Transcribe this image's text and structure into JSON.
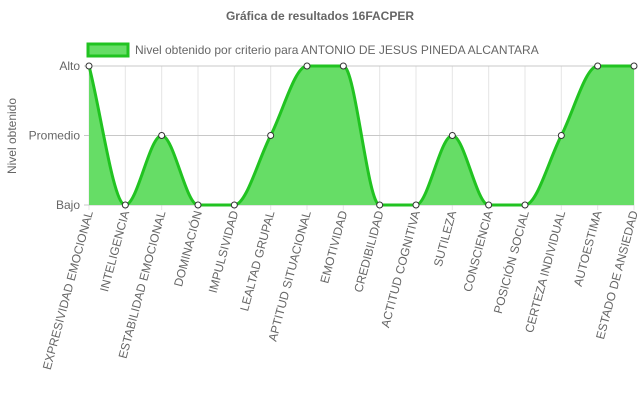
{
  "chart_data": {
    "type": "area",
    "title": "Gráfica de resultados 16FACPER",
    "ylabel": "Nivel obtenido",
    "xlabel": "",
    "y_categories": [
      "Bajo",
      "Promedio",
      "Alto"
    ],
    "categories": [
      "EXPRESIVIDAD EMOCIONAL",
      "INTELIGENCIA",
      "ESTABILIDAD EMOCIONAL",
      "DOMINACIÓN",
      "IMPULSIVIDAD",
      "LEALTAD GRUPAL",
      "APTITUD SITUACIONAL",
      "EMOTIVIDAD",
      "CREDIBILIDAD",
      "ACTITUD COGNITIVA",
      "SUTILEZA",
      "CONSCIENCIA",
      "POSICIÓN SOCIAL",
      "CERTEZA INDIVIDUAL",
      "AUTOESTIMA",
      "ESTADO DE ANSIEDAD"
    ],
    "series": [
      {
        "name": "Nivel obtenido por criterio para ANTONIO DE JESUS PINEDA ALCANTARA",
        "values": [
          2,
          0,
          1,
          0,
          0,
          1,
          2,
          2,
          0,
          0,
          1,
          0,
          0,
          1,
          2,
          2
        ],
        "color": "#21c321",
        "fill": "#66dd66"
      }
    ],
    "ylim": [
      0,
      2
    ],
    "grid": true,
    "legend_position": "top"
  }
}
